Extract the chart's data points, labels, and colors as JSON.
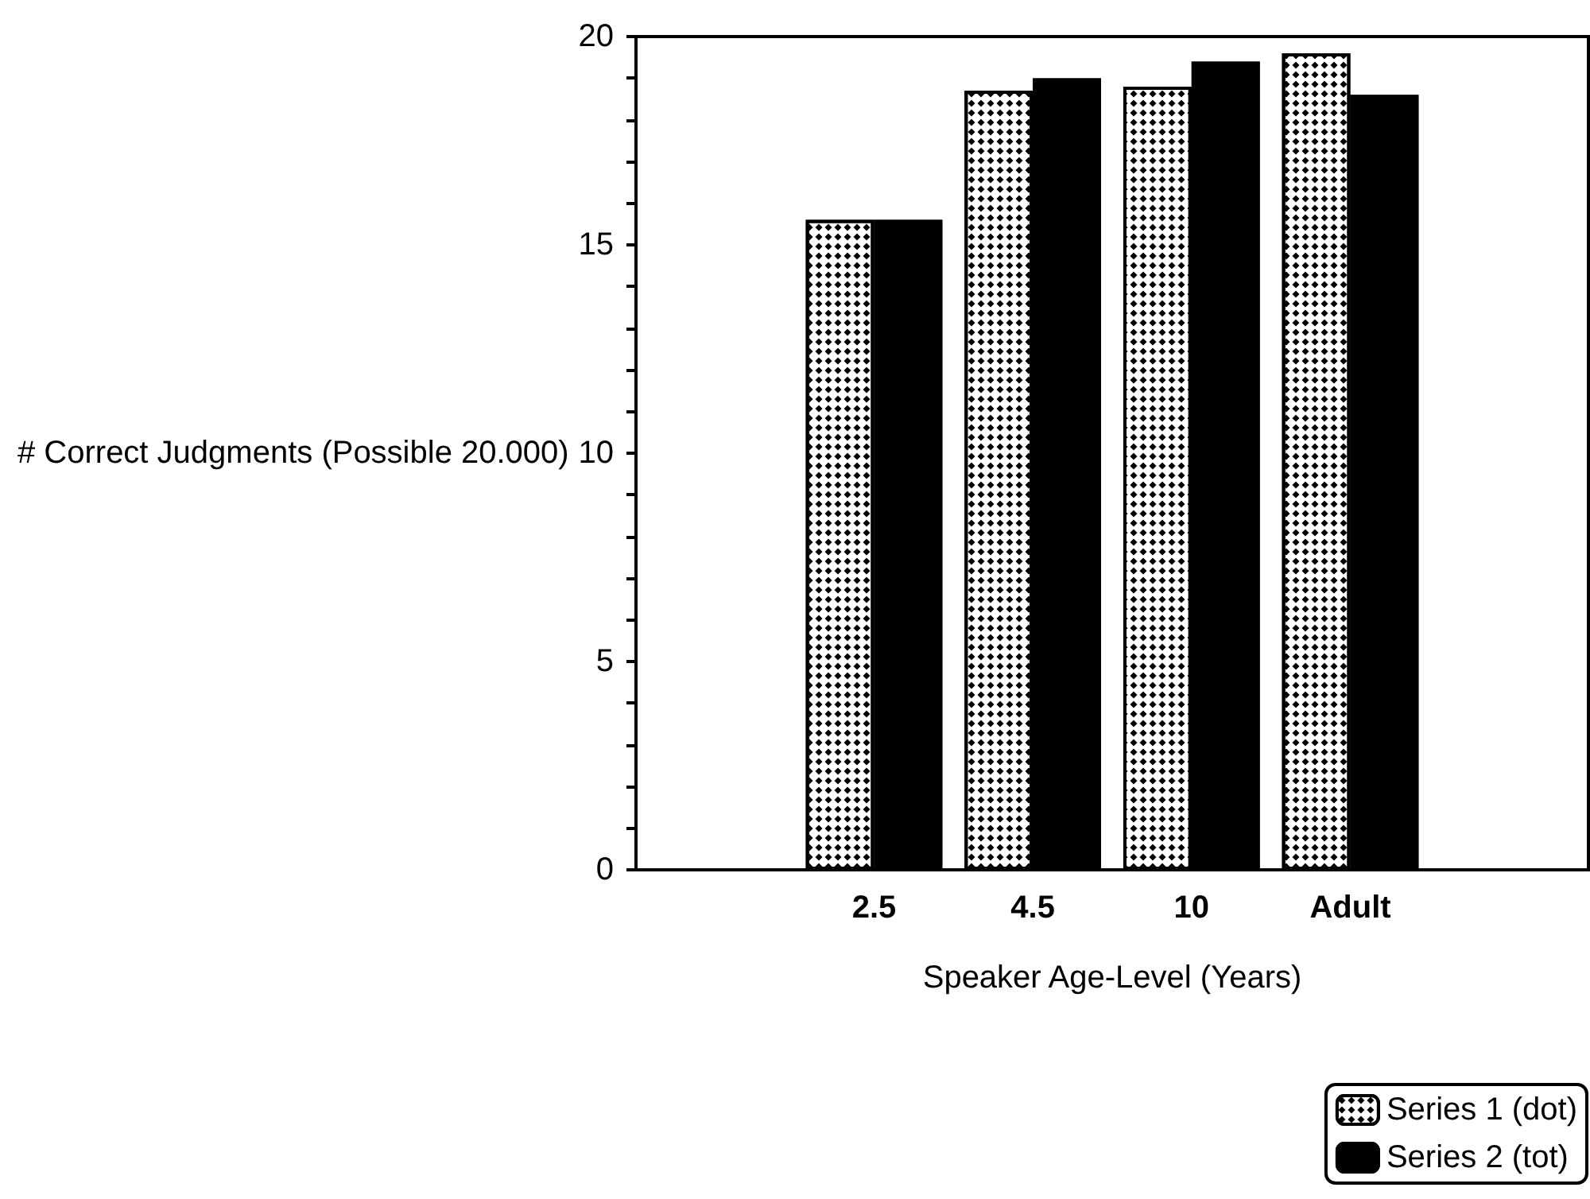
{
  "chart_data": {
    "type": "bar",
    "xlabel": "Speaker Age-Level (Years)",
    "ylabel": "# Correct Judgments (Possible 20.000)",
    "categories": [
      null,
      "2.5",
      "4.5",
      "10",
      "Adult",
      null
    ],
    "series": [
      {
        "name": "Series 1 (dot)",
        "color": "#ffffff",
        "values": [
          null,
          15.6,
          18.7,
          18.8,
          19.6,
          null
        ]
      },
      {
        "name": "Series 2 (tot)",
        "color": "#000000",
        "values": [
          null,
          15.6,
          19.0,
          19.4,
          18.6,
          null
        ]
      }
    ],
    "ylim": [
      0,
      20
    ],
    "yticks": [
      0,
      {
        "value": 1,
        "label": null
      },
      {
        "value": 2,
        "label": null
      },
      {
        "value": 3,
        "label": null
      },
      {
        "value": 4,
        "label": null
      },
      5,
      {
        "value": 6,
        "label": null
      },
      {
        "value": 7,
        "label": null
      },
      {
        "value": 8,
        "label": null
      },
      {
        "value": 9,
        "label": null
      },
      10,
      {
        "value": 11,
        "label": null
      },
      {
        "value": 12,
        "label": null
      },
      {
        "value": 13,
        "label": null
      },
      {
        "value": 14,
        "label": null
      },
      15,
      {
        "value": 16,
        "label": null
      },
      {
        "value": 17,
        "label": null
      },
      {
        "value": 18,
        "label": null
      },
      {
        "value": 19,
        "label": null
      },
      20
    ],
    "grid": false,
    "legend": "bottom right"
  }
}
